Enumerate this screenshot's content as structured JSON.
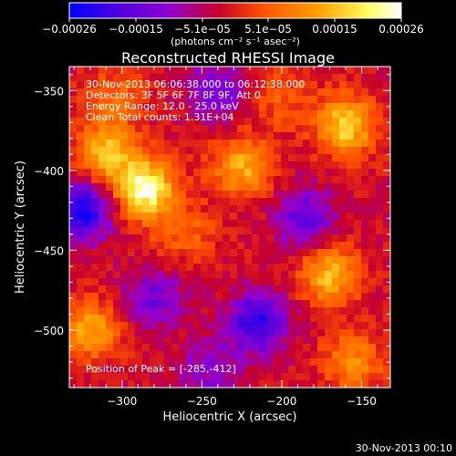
{
  "chart_data": {
    "type": "heatmap",
    "title": "Reconstructed RHESSI Image",
    "xlabel": "Heliocentric X (arcsec)",
    "ylabel": "Heliocentric Y (arcsec)",
    "xlim": [
      -333,
      -132
    ],
    "ylim": [
      -536,
      -335
    ],
    "x_ticks": [
      -300,
      -250,
      -200,
      -150
    ],
    "x_tick_labels": [
      "−300",
      "−250",
      "−200",
      "−150"
    ],
    "y_ticks": [
      -350,
      -400,
      -450,
      -500
    ],
    "y_tick_labels": [
      "−350",
      "−400",
      "−450",
      "−500"
    ],
    "colorbar": {
      "range": [
        -0.00026,
        0.00026
      ],
      "tick_labels": [
        "−0.00026",
        "−0.00015",
        "−5.1e−05",
        "5.1e−05",
        "0.00015",
        "0.00026"
      ],
      "unit": "(photons cm⁻² s⁻¹ asec⁻²)",
      "colors": [
        "#0000ff",
        "#4a00e0",
        "#9000d0",
        "#c8002a",
        "#ff5000",
        "#ffa000",
        "#ffff60",
        "#ffffff"
      ]
    },
    "annotations": [
      "30-Nov-2013 06:06:38.000 to 06:12:38.000",
      "Detectors: 3F 5F 6F 7F 8F 9F, Att 0",
      "Energy Range: 12.0 - 25.0 keV",
      "Clean    Total counts: 1.31E+04",
      "Position of Peak = [-285,-412]"
    ],
    "peak_position": [
      -285,
      -412
    ],
    "sources": [
      {
        "x": -285,
        "y": -412,
        "intensity": 0.00026
      },
      {
        "x": -310,
        "y": -390,
        "intensity": 0.00018
      },
      {
        "x": -225,
        "y": -398,
        "intensity": 0.00016
      },
      {
        "x": -160,
        "y": -372,
        "intensity": 0.0002
      },
      {
        "x": -170,
        "y": -465,
        "intensity": 0.00017
      },
      {
        "x": -320,
        "y": -500,
        "intensity": 0.00015
      },
      {
        "x": -155,
        "y": -520,
        "intensity": 0.00012
      },
      {
        "x": -260,
        "y": -440,
        "intensity": 8e-05
      },
      {
        "x": -200,
        "y": -355,
        "intensity": 7e-05
      },
      {
        "x": -305,
        "y": -355,
        "intensity": 9e-05
      },
      {
        "x": -325,
        "y": -425,
        "intensity": -0.00022
      },
      {
        "x": -215,
        "y": -495,
        "intensity": -0.0002
      },
      {
        "x": -280,
        "y": -480,
        "intensity": -0.00012
      },
      {
        "x": -240,
        "y": -350,
        "intensity": -0.00012
      },
      {
        "x": -185,
        "y": -430,
        "intensity": -0.00014
      },
      {
        "x": -245,
        "y": -525,
        "intensity": -0.0001
      }
    ]
  },
  "footer_timestamp": "30-Nov-2013 00:10"
}
